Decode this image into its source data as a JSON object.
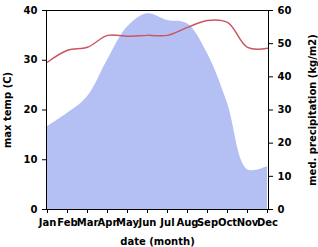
{
  "chart_data": {
    "type": "combo",
    "x_label": "date (month)",
    "y_label": "max temp (C)",
    "y2_label": "med. precipitation (kg/m2)",
    "categories": [
      "Jan",
      "Feb",
      "Mar",
      "Apr",
      "May",
      "Jun",
      "Jul",
      "Aug",
      "Sep",
      "Oct",
      "Nov",
      "Dec"
    ],
    "series": [
      {
        "name": "med. precipitation (kg/m2)",
        "type": "area",
        "axis": "y2",
        "color": "#b4c0f3",
        "values": [
          25,
          29,
          34,
          45,
          55,
          59,
          57,
          56,
          47,
          32,
          12,
          13
        ]
      },
      {
        "name": "max temp (C)",
        "type": "line",
        "color": "#c95660",
        "values": [
          29.6,
          32,
          32.6,
          35,
          34.8,
          35,
          35,
          36.6,
          38,
          37.6,
          32.6,
          32.4
        ]
      }
    ],
    "ylim": [
      0,
      40
    ],
    "yticks": [
      0,
      10,
      20,
      30,
      40
    ],
    "y2lim": [
      0,
      60
    ],
    "y2ticks": [
      0,
      10,
      20,
      30,
      40,
      50,
      60
    ]
  }
}
